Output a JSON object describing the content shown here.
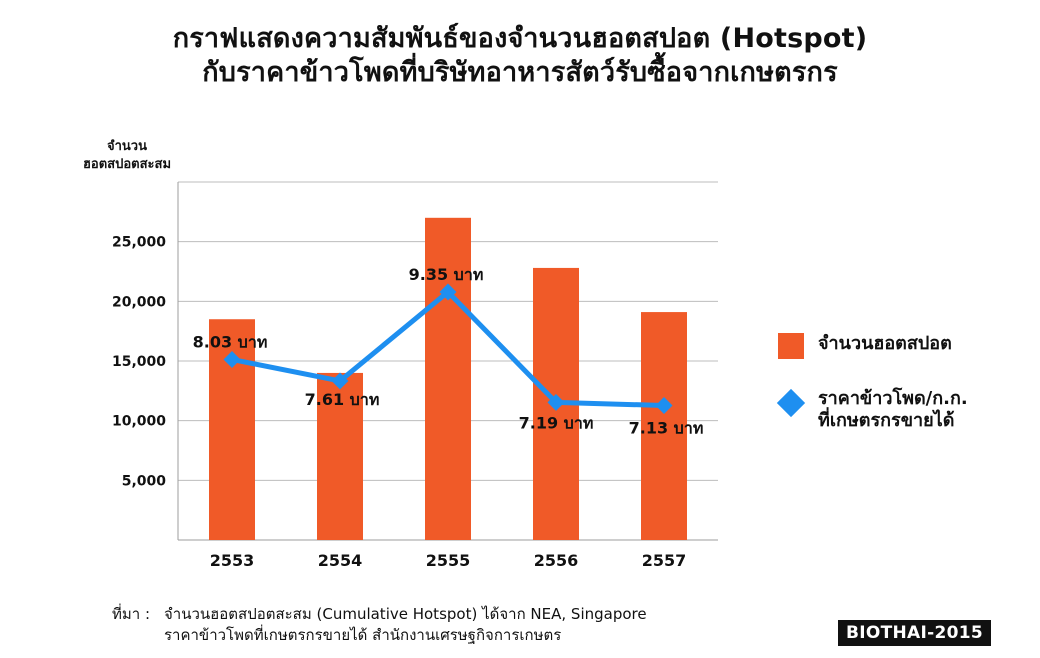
{
  "title_line1": "กราฟแสดงความสัมพันธ์ของจำนวนฮอตสปอต (Hotspot)",
  "title_line2": "กับราคาข้าวโพดที่บริษัทอาหารสัตว์รับซื้อจากเกษตรกร",
  "chart_data": {
    "type": "bar",
    "categories": [
      "2553",
      "2554",
      "2555",
      "2556",
      "2557"
    ],
    "ylabel_line1": "จำนวน",
    "ylabel_line2": "ฮอตสปอตสะสม",
    "ylim": [
      0,
      30000
    ],
    "yticks": [
      5000,
      10000,
      15000,
      20000,
      25000
    ],
    "ytick_labels": [
      "5,000",
      "10,000",
      "15,000",
      "20,000",
      "25,000"
    ],
    "grid": true,
    "series": [
      {
        "name": "จำนวนฮอตสปอต",
        "type": "bar",
        "values": [
          18500,
          14000,
          27000,
          22800,
          19100
        ],
        "color": "#f05a28"
      },
      {
        "name_line1": "ราคาข้าวโพด/ก.ก.",
        "name_line2": "ที่เกษตรกรขายได้",
        "type": "line",
        "values": [
          8.03,
          7.61,
          9.35,
          7.19,
          7.13
        ],
        "labels": [
          "8.03 บาท",
          "7.61 บาท",
          "9.35 บาท",
          "7.19 บาท",
          "7.13 บาท"
        ],
        "color": "#1e8ff0"
      }
    ],
    "legend_position": "right"
  },
  "source": {
    "lead": "ที่มา :",
    "line1": "จำนวนฮอตสปอตสะสม (Cumulative Hotspot) ได้จาก NEA, Singapore",
    "line2": "ราคาข้าวโพดที่เกษตรกรขายได้ สำนักงานเศรษฐกิจการเกษตร"
  },
  "badge": "BIOTHAI-2015"
}
